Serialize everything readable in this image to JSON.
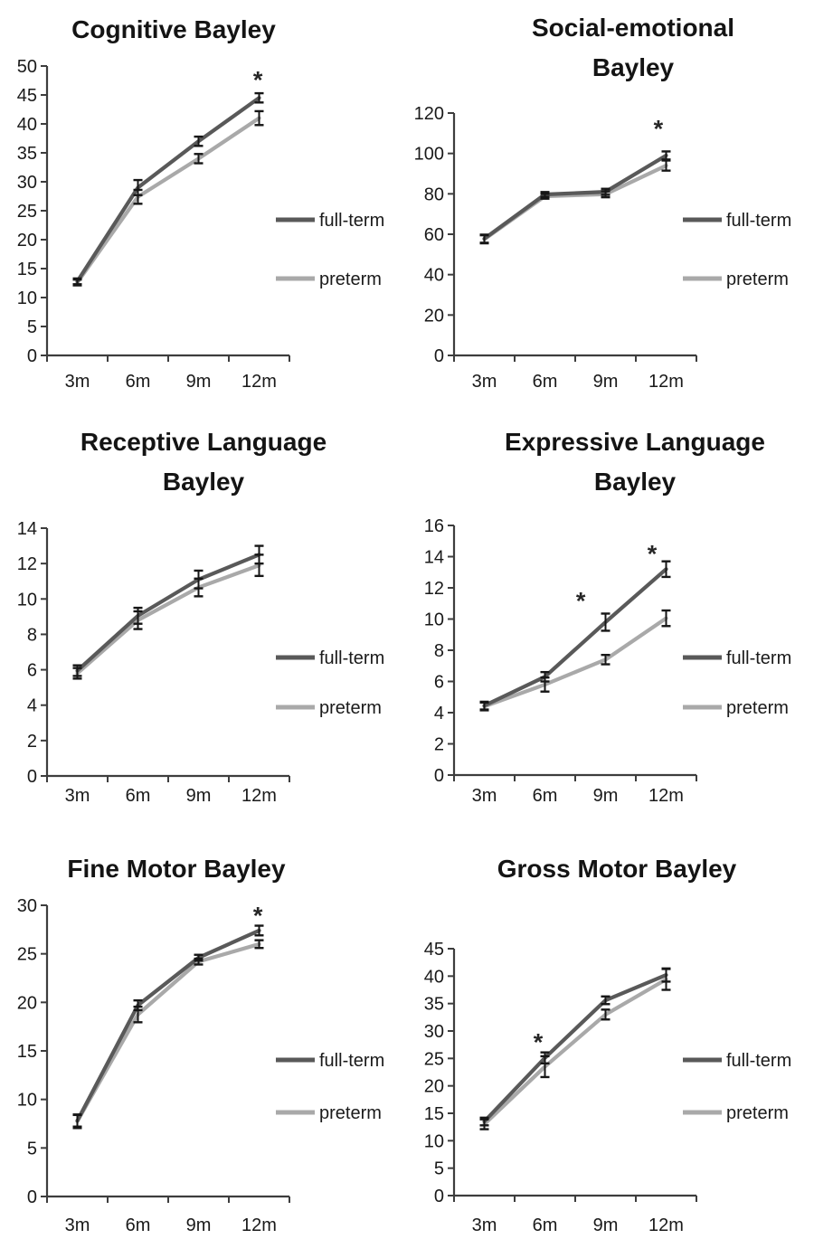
{
  "page": {
    "background": "#ffffff"
  },
  "colors": {
    "full_term_line": "#595959",
    "preterm_line": "#a9a9a9",
    "error_bar": "#161616",
    "axis": "#3d3d3d",
    "text": "#1a1a1a"
  },
  "legend": {
    "full_term_label": "full-term",
    "preterm_label": "preterm"
  },
  "chart_data": [
    {
      "id": "cognitive",
      "type": "line",
      "title_lines": [
        "Cognitive Bayley"
      ],
      "ylim": [
        0,
        50
      ],
      "ytick_step": 5,
      "categories": [
        "3m",
        "6m",
        "9m",
        "12m"
      ],
      "series": [
        {
          "name": "full-term",
          "values": [
            12.8,
            29.0,
            37.0,
            44.5
          ],
          "errors": [
            0.5,
            1.3,
            0.8,
            0.8
          ]
        },
        {
          "name": "preterm",
          "values": [
            12.6,
            27.4,
            34.0,
            41.0
          ],
          "errors": [
            0.5,
            1.2,
            0.8,
            1.2
          ]
        }
      ],
      "annotations": [
        {
          "symbol": "*",
          "x_frac": 0.87,
          "y": 48.2
        }
      ],
      "legend_entries": [
        "full-term",
        "preterm"
      ]
    },
    {
      "id": "social_emotional",
      "type": "line",
      "title_lines": [
        "Social-emotional",
        "Bayley"
      ],
      "ylim": [
        0,
        120
      ],
      "ytick_step": 20,
      "categories": [
        "3m",
        "6m",
        "9m",
        "12m"
      ],
      "series": [
        {
          "name": "full-term",
          "values": [
            57.8,
            79.7,
            81.0,
            99.0
          ],
          "errors": [
            2.0,
            1.2,
            1.5,
            2.0
          ]
        },
        {
          "name": "preterm",
          "values": [
            57.5,
            78.8,
            79.8,
            94.0
          ],
          "errors": [
            2.0,
            1.2,
            1.5,
            2.5
          ]
        }
      ],
      "annotations": [
        {
          "symbol": "*",
          "x_frac": 0.843,
          "y": 114
        }
      ],
      "legend_entries": [
        "full-term",
        "preterm"
      ]
    },
    {
      "id": "receptive_language",
      "type": "line",
      "title_lines": [
        "Receptive Language",
        "Bayley"
      ],
      "ylim": [
        0,
        14
      ],
      "ytick_step": 2,
      "categories": [
        "3m",
        "6m",
        "9m",
        "12m"
      ],
      "series": [
        {
          "name": "full-term",
          "values": [
            5.95,
            9.05,
            11.1,
            12.5
          ],
          "errors": [
            0.3,
            0.45,
            0.5,
            0.5
          ]
        },
        {
          "name": "preterm",
          "values": [
            5.8,
            8.8,
            10.65,
            11.9
          ],
          "errors": [
            0.3,
            0.5,
            0.5,
            0.6
          ]
        }
      ],
      "annotations": [],
      "legend_entries": [
        "full-term",
        "preterm"
      ]
    },
    {
      "id": "expressive_language",
      "type": "line",
      "title_lines": [
        "Expressive Language",
        "Bayley"
      ],
      "ylim": [
        0,
        16
      ],
      "ytick_step": 2,
      "categories": [
        "3m",
        "6m",
        "9m",
        "12m"
      ],
      "series": [
        {
          "name": "full-term",
          "values": [
            4.45,
            6.3,
            9.8,
            13.2
          ],
          "errors": [
            0.25,
            0.3,
            0.55,
            0.5
          ]
        },
        {
          "name": "preterm",
          "values": [
            4.4,
            5.8,
            7.4,
            10.05
          ],
          "errors": [
            0.25,
            0.45,
            0.3,
            0.5
          ]
        }
      ],
      "annotations": [
        {
          "symbol": "*",
          "x_frac": 0.523,
          "y": 11.4
        },
        {
          "symbol": "*",
          "x_frac": 0.817,
          "y": 14.4
        }
      ],
      "legend_entries": [
        "full-term",
        "preterm"
      ]
    },
    {
      "id": "fine_motor",
      "type": "line",
      "title_lines": [
        "Fine Motor Bayley"
      ],
      "ylim": [
        0,
        30
      ],
      "ytick_step": 5,
      "categories": [
        "3m",
        "6m",
        "9m",
        "12m"
      ],
      "series": [
        {
          "name": "full-term",
          "values": [
            7.8,
            19.7,
            24.6,
            27.4
          ],
          "errors": [
            0.6,
            0.5,
            0.3,
            0.5
          ]
        },
        {
          "name": "preterm",
          "values": [
            7.75,
            18.75,
            24.2,
            26.0
          ],
          "errors": [
            0.7,
            0.8,
            0.3,
            0.4
          ]
        }
      ],
      "annotations": [
        {
          "symbol": "*",
          "x_frac": 0.87,
          "y": 29.3
        }
      ],
      "legend_entries": [
        "full-term",
        "preterm"
      ]
    },
    {
      "id": "gross_motor",
      "type": "line",
      "title_lines": [
        "Gross Motor Bayley"
      ],
      "ylim": [
        0,
        45
      ],
      "ytick_step": 5,
      "categories": [
        "3m",
        "6m",
        "9m",
        "12m"
      ],
      "series": [
        {
          "name": "full-term",
          "values": [
            13.5,
            25.1,
            35.6,
            40.2
          ],
          "errors": [
            0.7,
            1.0,
            0.7,
            1.2
          ]
        },
        {
          "name": "preterm",
          "values": [
            13.0,
            23.5,
            33.0,
            39.4
          ],
          "errors": [
            0.9,
            1.9,
            0.9,
            1.9
          ]
        }
      ],
      "annotations": [
        {
          "symbol": "*",
          "x_frac": 0.347,
          "y": 28.6
        }
      ],
      "legend_entries": [
        "full-term",
        "preterm"
      ]
    }
  ]
}
